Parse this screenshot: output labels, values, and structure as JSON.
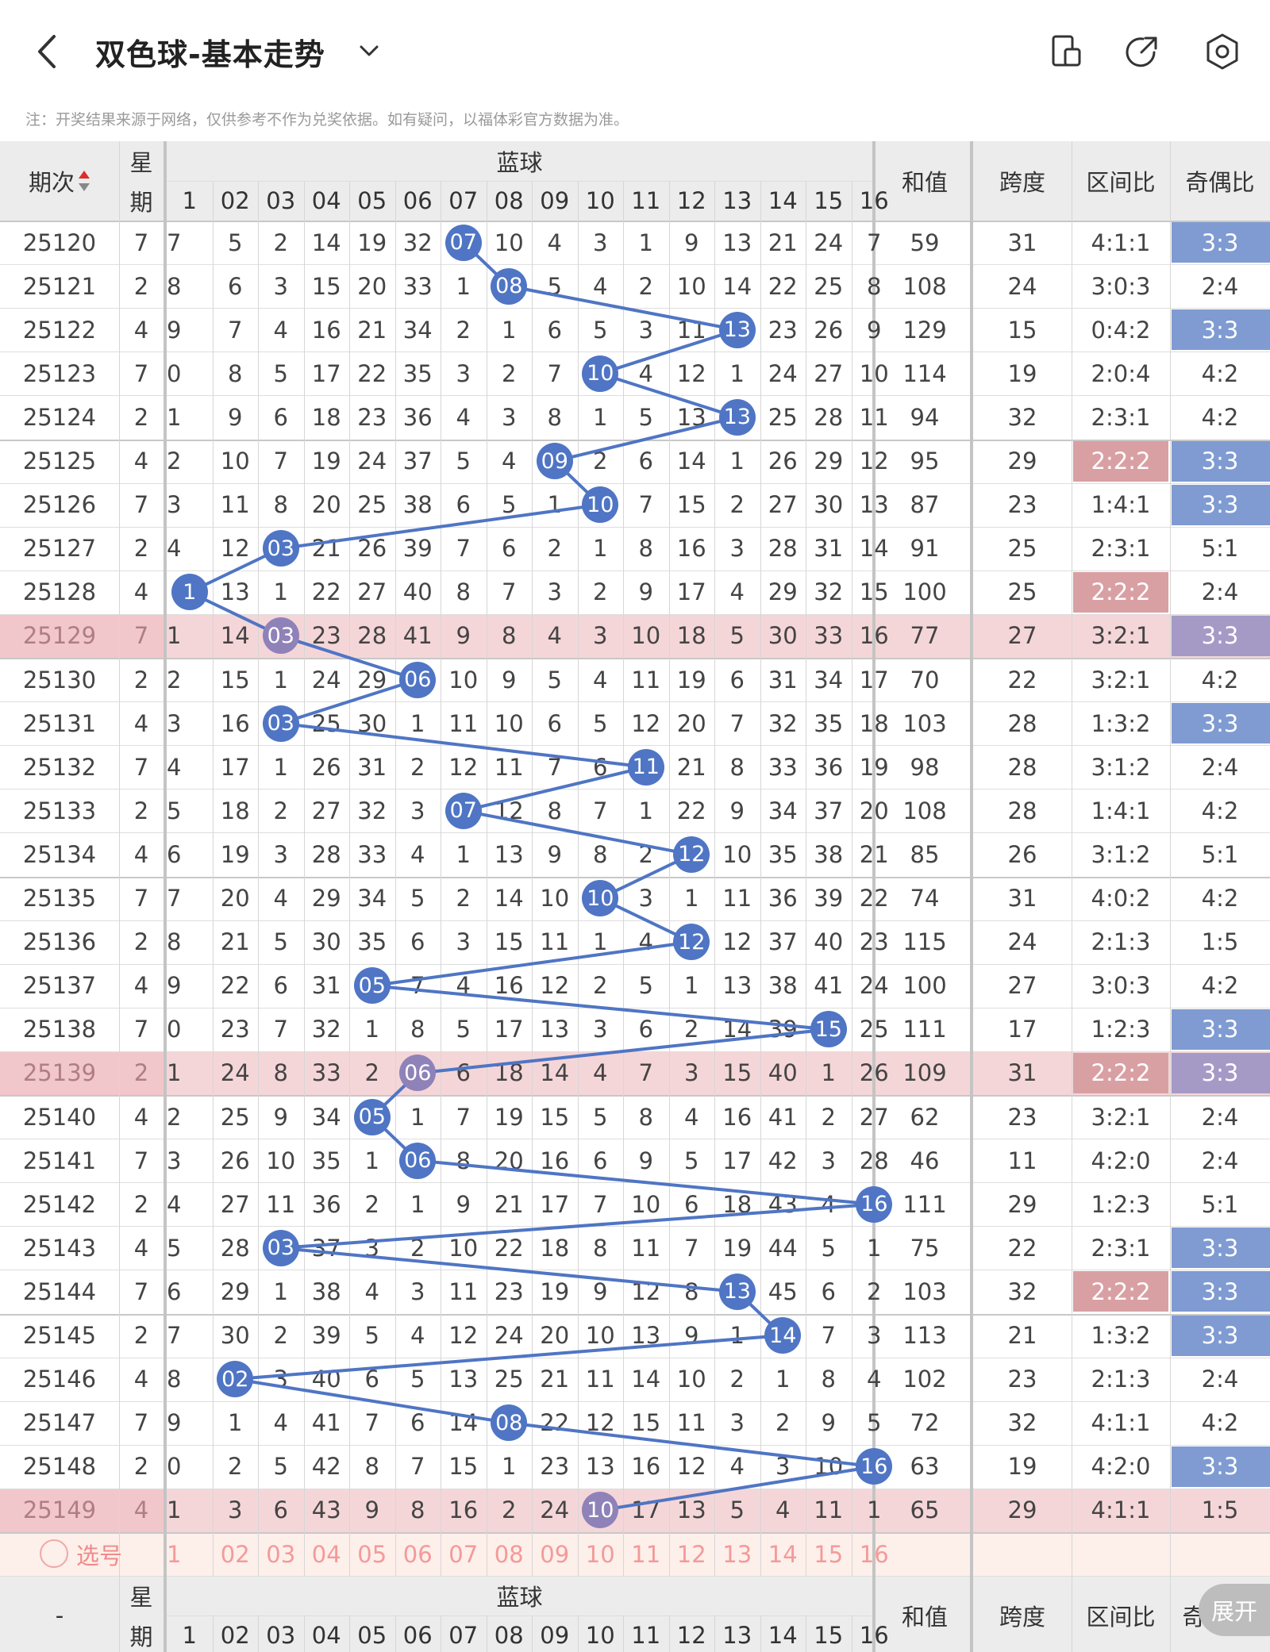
{
  "header": {
    "title": "双色球-基本走势",
    "back_icon": "chevron-left-icon",
    "dropdown_icon": "chevron-down-icon",
    "actions": [
      {
        "name": "device-switch-icon"
      },
      {
        "name": "share-icon"
      },
      {
        "name": "settings-icon"
      }
    ]
  },
  "notice": "注：开奖结果来源于网络，仅供参考不作为兑奖依据。如有疑问，以福体彩官方数据为准。",
  "table": {
    "col_period": "期次",
    "col_week_top": "星",
    "col_week_bottom": "期",
    "col_blue": "蓝球",
    "blue_headers": [
      "1",
      "02",
      "03",
      "04",
      "05",
      "06",
      "07",
      "08",
      "09",
      "10",
      "11",
      "12",
      "13",
      "14",
      "15",
      "16"
    ],
    "col_sum": "和值",
    "col_span": "跨度",
    "col_zone": "区间比",
    "col_oddeven": "奇偶比",
    "rows": [
      {
        "period": "25120",
        "week": "7",
        "cells": [
          "7",
          "5",
          "2",
          "14",
          "19",
          "32",
          "07",
          "10",
          "4",
          "3",
          "1",
          "9",
          "13",
          "21",
          "24",
          "7"
        ],
        "ball": 7,
        "sum": "59",
        "span": "31",
        "zone": "4:1:1",
        "oe": "3:3",
        "zh": false,
        "oh": true
      },
      {
        "period": "25121",
        "week": "2",
        "cells": [
          "8",
          "6",
          "3",
          "15",
          "20",
          "33",
          "1",
          "08",
          "5",
          "4",
          "2",
          "10",
          "14",
          "22",
          "25",
          "8"
        ],
        "ball": 8,
        "sum": "108",
        "span": "24",
        "zone": "3:0:3",
        "oe": "2:4",
        "zh": false,
        "oh": false
      },
      {
        "period": "25122",
        "week": "4",
        "cells": [
          "9",
          "7",
          "4",
          "16",
          "21",
          "34",
          "2",
          "1",
          "6",
          "5",
          "3",
          "11",
          "13",
          "23",
          "26",
          "9"
        ],
        "ball": 13,
        "sum": "129",
        "span": "15",
        "zone": "0:4:2",
        "oe": "3:3",
        "zh": false,
        "oh": true
      },
      {
        "period": "25123",
        "week": "7",
        "cells": [
          "0",
          "8",
          "5",
          "17",
          "22",
          "35",
          "3",
          "2",
          "7",
          "10",
          "4",
          "12",
          "1",
          "24",
          "27",
          "10"
        ],
        "ball": 10,
        "sum": "114",
        "span": "19",
        "zone": "2:0:4",
        "oe": "4:2",
        "zh": false,
        "oh": false
      },
      {
        "period": "25124",
        "week": "2",
        "cells": [
          "1",
          "9",
          "6",
          "18",
          "23",
          "36",
          "4",
          "3",
          "8",
          "1",
          "5",
          "13",
          "13",
          "25",
          "28",
          "11"
        ],
        "ball": 13,
        "sum": "94",
        "span": "32",
        "zone": "2:3:1",
        "oe": "4:2",
        "zh": false,
        "oh": false
      },
      {
        "period": "25125",
        "week": "4",
        "cells": [
          "2",
          "10",
          "7",
          "19",
          "24",
          "37",
          "5",
          "4",
          "09",
          "2",
          "6",
          "14",
          "1",
          "26",
          "29",
          "12"
        ],
        "ball": 9,
        "sum": "95",
        "span": "29",
        "zone": "2:2:2",
        "oe": "3:3",
        "zh": true,
        "oh": true
      },
      {
        "period": "25126",
        "week": "7",
        "cells": [
          "3",
          "11",
          "8",
          "20",
          "25",
          "38",
          "6",
          "5",
          "1",
          "10",
          "7",
          "15",
          "2",
          "27",
          "30",
          "13"
        ],
        "ball": 10,
        "sum": "87",
        "span": "23",
        "zone": "1:4:1",
        "oe": "3:3",
        "zh": false,
        "oh": true
      },
      {
        "period": "25127",
        "week": "2",
        "cells": [
          "4",
          "12",
          "03",
          "21",
          "26",
          "39",
          "7",
          "6",
          "2",
          "1",
          "8",
          "16",
          "3",
          "28",
          "31",
          "14"
        ],
        "ball": 3,
        "sum": "91",
        "span": "25",
        "zone": "2:3:1",
        "oe": "5:1",
        "zh": false,
        "oh": false
      },
      {
        "period": "25128",
        "week": "4",
        "cells": [
          "1",
          "13",
          "1",
          "22",
          "27",
          "40",
          "8",
          "7",
          "3",
          "2",
          "9",
          "17",
          "4",
          "29",
          "32",
          "15"
        ],
        "ball": 1,
        "sum": "100",
        "span": "25",
        "zone": "2:2:2",
        "oe": "2:4",
        "zh": true,
        "oh": false
      },
      {
        "period": "25129",
        "week": "7",
        "cells": [
          "1",
          "14",
          "03",
          "23",
          "28",
          "41",
          "9",
          "8",
          "4",
          "3",
          "10",
          "18",
          "5",
          "30",
          "33",
          "16"
        ],
        "ball": 3,
        "sum": "77",
        "span": "27",
        "zone": "3:2:1",
        "oe": "3:3",
        "zh": false,
        "oh": true,
        "pink": true
      },
      {
        "period": "25130",
        "week": "2",
        "cells": [
          "2",
          "15",
          "1",
          "24",
          "29",
          "06",
          "10",
          "9",
          "5",
          "4",
          "11",
          "19",
          "6",
          "31",
          "34",
          "17"
        ],
        "ball": 6,
        "sum": "70",
        "span": "22",
        "zone": "3:2:1",
        "oe": "4:2",
        "zh": false,
        "oh": false
      },
      {
        "period": "25131",
        "week": "4",
        "cells": [
          "3",
          "16",
          "03",
          "25",
          "30",
          "1",
          "11",
          "10",
          "6",
          "5",
          "12",
          "20",
          "7",
          "32",
          "35",
          "18"
        ],
        "ball": 3,
        "sum": "103",
        "span": "28",
        "zone": "1:3:2",
        "oe": "3:3",
        "zh": false,
        "oh": true
      },
      {
        "period": "25132",
        "week": "7",
        "cells": [
          "4",
          "17",
          "1",
          "26",
          "31",
          "2",
          "12",
          "11",
          "7",
          "6",
          "11",
          "21",
          "8",
          "33",
          "36",
          "19"
        ],
        "ball": 11,
        "sum": "98",
        "span": "28",
        "zone": "3:1:2",
        "oe": "2:4",
        "zh": false,
        "oh": false
      },
      {
        "period": "25133",
        "week": "2",
        "cells": [
          "5",
          "18",
          "2",
          "27",
          "32",
          "3",
          "07",
          "12",
          "8",
          "7",
          "1",
          "22",
          "9",
          "34",
          "37",
          "20"
        ],
        "ball": 7,
        "sum": "108",
        "span": "28",
        "zone": "1:4:1",
        "oe": "4:2",
        "zh": false,
        "oh": false
      },
      {
        "period": "25134",
        "week": "4",
        "cells": [
          "6",
          "19",
          "3",
          "28",
          "33",
          "4",
          "1",
          "13",
          "9",
          "8",
          "2",
          "12",
          "10",
          "35",
          "38",
          "21"
        ],
        "ball": 12,
        "sum": "85",
        "span": "26",
        "zone": "3:1:2",
        "oe": "5:1",
        "zh": false,
        "oh": false
      },
      {
        "period": "25135",
        "week": "7",
        "cells": [
          "7",
          "20",
          "4",
          "29",
          "34",
          "5",
          "2",
          "14",
          "10",
          "10",
          "3",
          "1",
          "11",
          "36",
          "39",
          "22"
        ],
        "ball": 10,
        "sum": "74",
        "span": "31",
        "zone": "4:0:2",
        "oe": "4:2",
        "zh": false,
        "oh": false
      },
      {
        "period": "25136",
        "week": "2",
        "cells": [
          "8",
          "21",
          "5",
          "30",
          "35",
          "6",
          "3",
          "15",
          "11",
          "1",
          "4",
          "12",
          "12",
          "37",
          "40",
          "23"
        ],
        "ball": 12,
        "sum": "115",
        "span": "24",
        "zone": "2:1:3",
        "oe": "1:5",
        "zh": false,
        "oh": false
      },
      {
        "period": "25137",
        "week": "4",
        "cells": [
          "9",
          "22",
          "6",
          "31",
          "05",
          "7",
          "4",
          "16",
          "12",
          "2",
          "5",
          "1",
          "13",
          "38",
          "41",
          "24"
        ],
        "ball": 5,
        "sum": "100",
        "span": "27",
        "zone": "3:0:3",
        "oe": "4:2",
        "zh": false,
        "oh": false
      },
      {
        "period": "25138",
        "week": "7",
        "cells": [
          "0",
          "23",
          "7",
          "32",
          "1",
          "8",
          "5",
          "17",
          "13",
          "3",
          "6",
          "2",
          "14",
          "39",
          "15",
          "25"
        ],
        "ball": 15,
        "sum": "111",
        "span": "17",
        "zone": "1:2:3",
        "oe": "3:3",
        "zh": false,
        "oh": true
      },
      {
        "period": "25139",
        "week": "2",
        "cells": [
          "1",
          "24",
          "8",
          "33",
          "2",
          "06",
          "6",
          "18",
          "14",
          "4",
          "7",
          "3",
          "15",
          "40",
          "1",
          "26"
        ],
        "ball": 6,
        "sum": "109",
        "span": "31",
        "zone": "2:2:2",
        "oe": "3:3",
        "zh": true,
        "oh": true,
        "pink": true
      },
      {
        "period": "25140",
        "week": "4",
        "cells": [
          "2",
          "25",
          "9",
          "34",
          "05",
          "1",
          "7",
          "19",
          "15",
          "5",
          "8",
          "4",
          "16",
          "41",
          "2",
          "27"
        ],
        "ball": 5,
        "sum": "62",
        "span": "23",
        "zone": "3:2:1",
        "oe": "2:4",
        "zh": false,
        "oh": false
      },
      {
        "period": "25141",
        "week": "7",
        "cells": [
          "3",
          "26",
          "10",
          "35",
          "1",
          "06",
          "8",
          "20",
          "16",
          "6",
          "9",
          "5",
          "17",
          "42",
          "3",
          "28"
        ],
        "ball": 6,
        "sum": "46",
        "span": "11",
        "zone": "4:2:0",
        "oe": "2:4",
        "zh": false,
        "oh": false
      },
      {
        "period": "25142",
        "week": "2",
        "cells": [
          "4",
          "27",
          "11",
          "36",
          "2",
          "1",
          "9",
          "21",
          "17",
          "7",
          "10",
          "6",
          "18",
          "43",
          "4",
          "16"
        ],
        "ball": 16,
        "sum": "111",
        "span": "29",
        "zone": "1:2:3",
        "oe": "5:1",
        "zh": false,
        "oh": false
      },
      {
        "period": "25143",
        "week": "4",
        "cells": [
          "5",
          "28",
          "03",
          "37",
          "3",
          "2",
          "10",
          "22",
          "18",
          "8",
          "11",
          "7",
          "19",
          "44",
          "5",
          "1"
        ],
        "ball": 3,
        "sum": "75",
        "span": "22",
        "zone": "2:3:1",
        "oe": "3:3",
        "zh": false,
        "oh": true
      },
      {
        "period": "25144",
        "week": "7",
        "cells": [
          "6",
          "29",
          "1",
          "38",
          "4",
          "3",
          "11",
          "23",
          "19",
          "9",
          "12",
          "8",
          "13",
          "45",
          "6",
          "2"
        ],
        "ball": 13,
        "sum": "103",
        "span": "32",
        "zone": "2:2:2",
        "oe": "3:3",
        "zh": true,
        "oh": true
      },
      {
        "period": "25145",
        "week": "2",
        "cells": [
          "7",
          "30",
          "2",
          "39",
          "5",
          "4",
          "12",
          "24",
          "20",
          "10",
          "13",
          "9",
          "1",
          "14",
          "7",
          "3"
        ],
        "ball": 14,
        "sum": "113",
        "span": "21",
        "zone": "1:3:2",
        "oe": "3:3",
        "zh": false,
        "oh": true
      },
      {
        "period": "25146",
        "week": "4",
        "cells": [
          "8",
          "02",
          "3",
          "40",
          "6",
          "5",
          "13",
          "25",
          "21",
          "11",
          "14",
          "10",
          "2",
          "1",
          "8",
          "4"
        ],
        "ball": 2,
        "sum": "102",
        "span": "23",
        "zone": "2:1:3",
        "oe": "2:4",
        "zh": false,
        "oh": false
      },
      {
        "period": "25147",
        "week": "7",
        "cells": [
          "9",
          "1",
          "4",
          "41",
          "7",
          "6",
          "14",
          "08",
          "22",
          "12",
          "15",
          "11",
          "3",
          "2",
          "9",
          "5"
        ],
        "ball": 8,
        "sum": "72",
        "span": "32",
        "zone": "4:1:1",
        "oe": "4:2",
        "zh": false,
        "oh": false
      },
      {
        "period": "25148",
        "week": "2",
        "cells": [
          "0",
          "2",
          "5",
          "42",
          "8",
          "7",
          "15",
          "1",
          "23",
          "13",
          "16",
          "12",
          "4",
          "3",
          "10",
          "16"
        ],
        "ball": 16,
        "sum": "63",
        "span": "19",
        "zone": "4:2:0",
        "oe": "3:3",
        "zh": false,
        "oh": true
      },
      {
        "period": "25149",
        "week": "4",
        "cells": [
          "1",
          "3",
          "6",
          "43",
          "9",
          "8",
          "16",
          "2",
          "24",
          "10",
          "17",
          "13",
          "5",
          "4",
          "11",
          "1"
        ],
        "ball": 10,
        "sum": "65",
        "span": "29",
        "zone": "4:1:1",
        "oe": "1:5",
        "zh": false,
        "oh": false,
        "pink": true,
        "ghost": true
      }
    ],
    "pick_label": "选号",
    "pick_numbers": [
      "1",
      "02",
      "03",
      "04",
      "05",
      "06",
      "07",
      "08",
      "09",
      "10",
      "11",
      "12",
      "13",
      "14",
      "15",
      "16"
    ],
    "footer_period": "-",
    "footer_week_top": "星",
    "footer_week_bottom": "期",
    "footer_blue": "蓝球",
    "footer_sum": "和值",
    "footer_span": "跨度",
    "footer_zone": "区间比",
    "footer_oe": "奇",
    "expand_label": "展开"
  },
  "colors": {
    "ball": "#4f75c4",
    "ball_ghost": "#8e82b8",
    "pink_row": "#f5d6d8",
    "zone_highlight": "#d9a0a4",
    "oe_highlight": "#7f9bd2",
    "header_bg": "#ececec"
  }
}
